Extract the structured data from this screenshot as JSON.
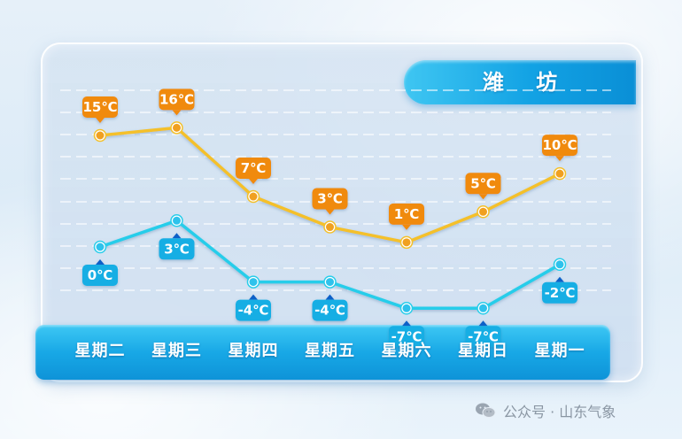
{
  "header": {
    "city": "潍 坊"
  },
  "chart_data": {
    "type": "line",
    "categories": [
      "星期二",
      "星期三",
      "星期四",
      "星期五",
      "星期六",
      "星期日",
      "星期一"
    ],
    "series": [
      {
        "values": [
          15,
          16,
          7,
          3,
          1,
          5,
          10
        ],
        "labels": [
          "15℃",
          "16℃",
          "7℃",
          "3℃",
          "1℃",
          "5℃",
          "10℃"
        ],
        "color": "#f4c02a",
        "badge_color": "#f08a0c"
      },
      {
        "values": [
          0,
          3,
          -4,
          -4,
          -7,
          -7,
          -2
        ],
        "labels": [
          "0℃",
          "3℃",
          "-4℃",
          "-4℃",
          "-7℃",
          "-7℃",
          "-2℃"
        ],
        "color": "#28cdea",
        "badge_color": "#16aee4"
      }
    ],
    "ylabel": "",
    "xlabel": "",
    "grid": true,
    "unit": "℃"
  },
  "footer": {
    "watermark": "公众号 · 山东气象",
    "watermark_icon": "wechat-icon"
  }
}
